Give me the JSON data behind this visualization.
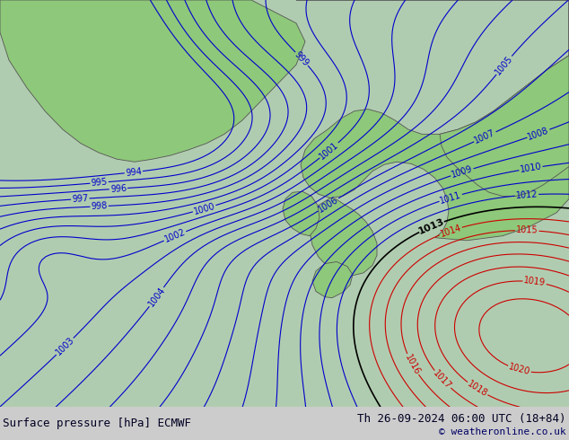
{
  "title_left": "Surface pressure [hPa] ECMWF",
  "title_right": "Th 26-09-2024 06:00 UTC (18+84)",
  "copyright": "© weatheronline.co.uk",
  "fig_width": 6.34,
  "fig_height": 4.9,
  "dpi": 100,
  "title_fontsize": 9,
  "copyright_fontsize": 8,
  "blue_contour_color": "#0000cc",
  "red_contour_color": "#cc0000",
  "black_contour_color": "#000000",
  "contour_linewidth": 0.8,
  "label_fontsize": 7,
  "land_color": "#8ec87a",
  "sea_color": "#b0ccb0",
  "bg_color": "#a8c8a0"
}
